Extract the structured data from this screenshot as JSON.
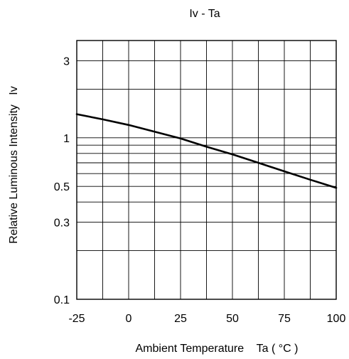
{
  "chart_data": {
    "type": "line",
    "title": "Iv - Ta",
    "xlabel": "Ambient Temperature    Ta ( °C )",
    "ylabel": "Relative Luminous Intensity   Iv",
    "xlim": [
      -25,
      100
    ],
    "ylim": [
      0.1,
      4
    ],
    "yscale": "log",
    "grid": true,
    "x_ticks": [
      -25,
      0,
      25,
      50,
      75,
      100
    ],
    "x_tick_labels": [
      "-25",
      "0",
      "25",
      "50",
      "75",
      "100"
    ],
    "x_grid": [
      -25,
      -12.5,
      0,
      12.5,
      25,
      37.5,
      50,
      62.5,
      75,
      87.5,
      100
    ],
    "y_ticks": [
      0.1,
      0.3,
      0.5,
      1,
      3
    ],
    "y_tick_labels": [
      "0.1",
      "0.3",
      "0.5",
      "1",
      "3"
    ],
    "y_grid": [
      0.1,
      0.2,
      0.3,
      0.4,
      0.5,
      0.6,
      0.7,
      0.8,
      0.9,
      1,
      2,
      3,
      4
    ],
    "series": [
      {
        "x": [
          -25,
          -12.5,
          0,
          12.5,
          25,
          37.5,
          50,
          62.5,
          75,
          87.5,
          100
        ],
        "y": [
          1.4,
          1.3,
          1.2,
          1.09,
          0.99,
          0.88,
          0.79,
          0.7,
          0.62,
          0.55,
          0.49
        ]
      }
    ]
  }
}
